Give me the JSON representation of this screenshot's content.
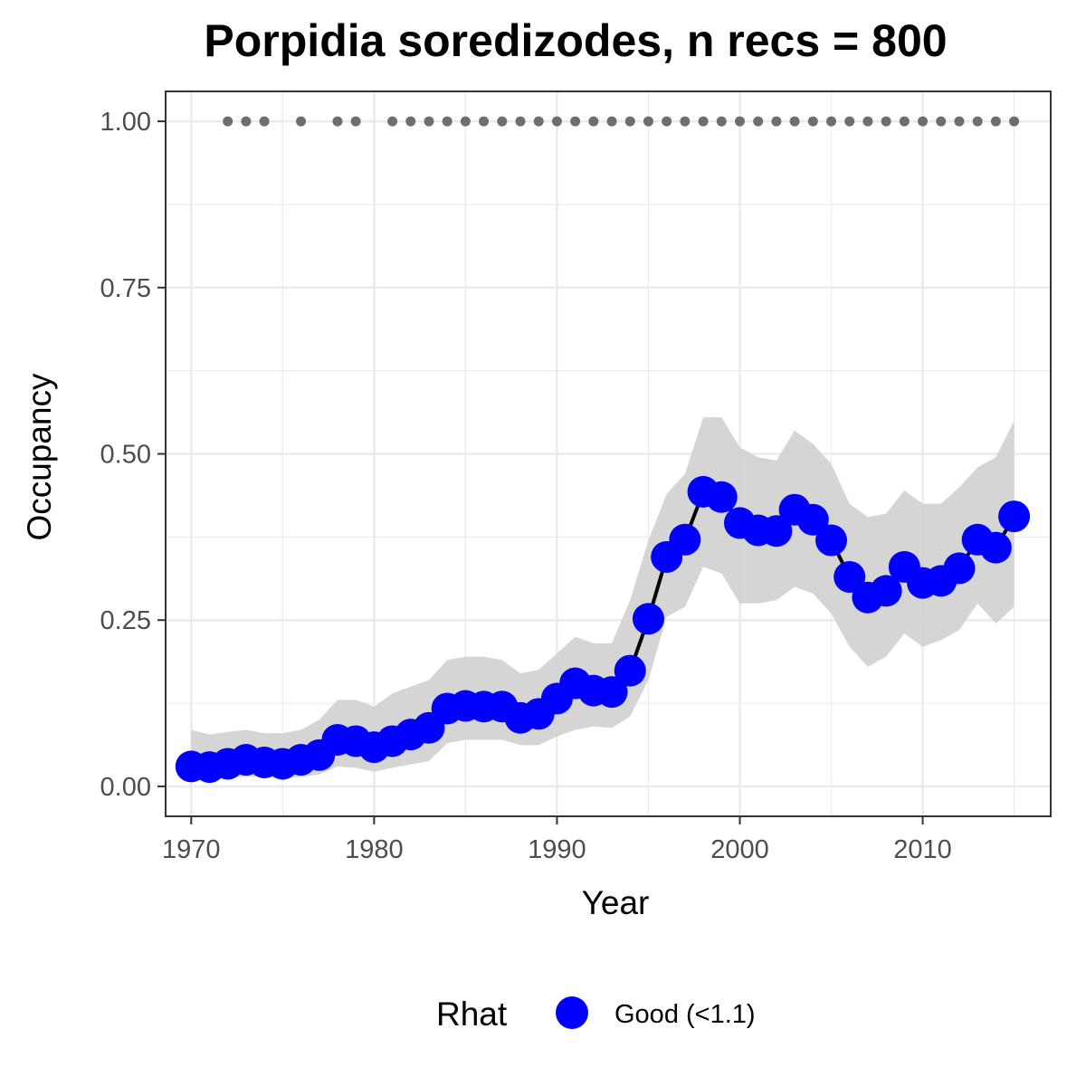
{
  "chart_data": {
    "type": "line",
    "title": "Porpidia soredizodes, n recs = 800",
    "xlabel": "Year",
    "ylabel": "Occupancy",
    "xlim": [
      1968.6,
      2017.0
    ],
    "ylim": [
      -0.045,
      1.045
    ],
    "x_ticks": [
      1970,
      1980,
      1990,
      2000,
      2010
    ],
    "x_tick_labels": [
      "1970",
      "1980",
      "1990",
      "2000",
      "2010"
    ],
    "y_ticks": [
      0.0,
      0.25,
      0.5,
      0.75,
      1.0
    ],
    "y_tick_labels": [
      "0.00",
      "0.25",
      "0.50",
      "0.75",
      "1.00"
    ],
    "grid": true,
    "legend": {
      "title": "Rhat",
      "position": "bottom",
      "entries": [
        {
          "label": "Good (<1.1)",
          "color": "#0000ff"
        }
      ]
    },
    "colors": {
      "points": "#0000ff",
      "line": "#000000",
      "ribbon": "#d3d3d3",
      "record_dots": "#6e6e6e",
      "grid": "#ebebeb",
      "panel_border": "#333333"
    },
    "years": [
      1970,
      1971,
      1972,
      1973,
      1974,
      1975,
      1976,
      1977,
      1978,
      1979,
      1980,
      1981,
      1982,
      1983,
      1984,
      1985,
      1986,
      1987,
      1988,
      1989,
      1990,
      1991,
      1992,
      1993,
      1994,
      1995,
      1996,
      1997,
      1998,
      1999,
      2000,
      2001,
      2002,
      2003,
      2004,
      2005,
      2006,
      2007,
      2008,
      2009,
      2010,
      2011,
      2012,
      2013,
      2014,
      2015
    ],
    "series": [
      {
        "name": "Good (<1.1)",
        "values": [
          0.03,
          0.029,
          0.034,
          0.04,
          0.036,
          0.034,
          0.04,
          0.047,
          0.07,
          0.068,
          0.059,
          0.068,
          0.078,
          0.088,
          0.117,
          0.121,
          0.12,
          0.12,
          0.103,
          0.109,
          0.132,
          0.155,
          0.144,
          0.142,
          0.174,
          0.252,
          0.345,
          0.371,
          0.443,
          0.435,
          0.396,
          0.385,
          0.384,
          0.416,
          0.401,
          0.37,
          0.315,
          0.284,
          0.294,
          0.33,
          0.306,
          0.309,
          0.328,
          0.371,
          0.359,
          0.406
        ],
        "lower": [
          0.01,
          0.011,
          0.013,
          0.015,
          0.014,
          0.012,
          0.014,
          0.018,
          0.03,
          0.028,
          0.022,
          0.028,
          0.033,
          0.038,
          0.065,
          0.07,
          0.07,
          0.07,
          0.062,
          0.062,
          0.075,
          0.085,
          0.09,
          0.088,
          0.105,
          0.16,
          0.255,
          0.27,
          0.33,
          0.32,
          0.275,
          0.275,
          0.28,
          0.3,
          0.29,
          0.26,
          0.21,
          0.18,
          0.195,
          0.23,
          0.21,
          0.22,
          0.235,
          0.275,
          0.245,
          0.27
        ],
        "upper": [
          0.085,
          0.078,
          0.082,
          0.085,
          0.08,
          0.08,
          0.085,
          0.1,
          0.13,
          0.13,
          0.12,
          0.14,
          0.15,
          0.16,
          0.19,
          0.195,
          0.195,
          0.19,
          0.17,
          0.175,
          0.2,
          0.225,
          0.215,
          0.215,
          0.28,
          0.37,
          0.44,
          0.47,
          0.555,
          0.555,
          0.51,
          0.495,
          0.49,
          0.535,
          0.515,
          0.485,
          0.425,
          0.405,
          0.41,
          0.445,
          0.425,
          0.425,
          0.45,
          0.48,
          0.495,
          0.55
        ]
      }
    ],
    "records": {
      "y": 1.0,
      "years": [
        1972,
        1973,
        1974,
        1976,
        1978,
        1979,
        1981,
        1982,
        1983,
        1984,
        1985,
        1986,
        1987,
        1988,
        1989,
        1990,
        1991,
        1992,
        1993,
        1994,
        1995,
        1996,
        1997,
        1998,
        1999,
        2000,
        2001,
        2002,
        2003,
        2004,
        2005,
        2006,
        2007,
        2008,
        2009,
        2010,
        2011,
        2012,
        2013,
        2014,
        2015
      ]
    }
  }
}
